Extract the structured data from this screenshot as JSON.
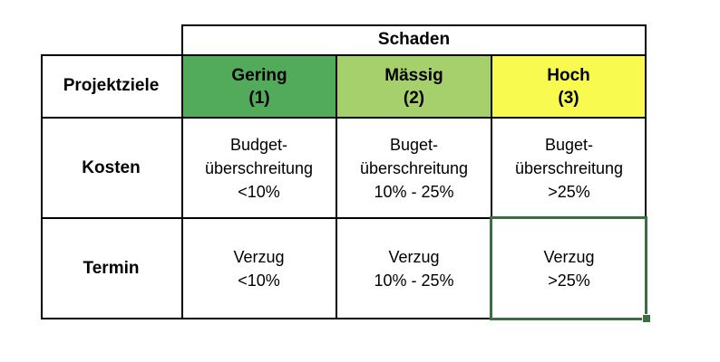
{
  "table": {
    "header": {
      "title": "Schaden",
      "row_header": "Projektziele"
    },
    "levels": [
      {
        "name": "Gering",
        "number": "(1)",
        "color": "#52ab5a"
      },
      {
        "name": "Mässig",
        "number": "(2)",
        "color": "#a6d06c"
      },
      {
        "name": "Hoch",
        "number": "(3)",
        "color": "#f9fa4f"
      }
    ],
    "rows": [
      {
        "label": "Kosten",
        "cells": [
          {
            "line1": "Budget-",
            "line2": "überschreitung",
            "line3": "<10%"
          },
          {
            "line1": "Buget-",
            "line2": "überschreitung",
            "line3": "10% - 25%"
          },
          {
            "line1": "Buget-",
            "line2": "überschreitung",
            "line3": ">25%"
          }
        ]
      },
      {
        "label": "Termin",
        "cells": [
          {
            "line1": "Verzug",
            "line2": "<10%"
          },
          {
            "line1": "Verzug",
            "line2": "10% - 25%"
          },
          {
            "line1": "Verzug",
            "line2": ">25%"
          }
        ]
      }
    ]
  },
  "selection": {
    "color": "#3b6e40",
    "cell": "Termin / Hoch"
  }
}
